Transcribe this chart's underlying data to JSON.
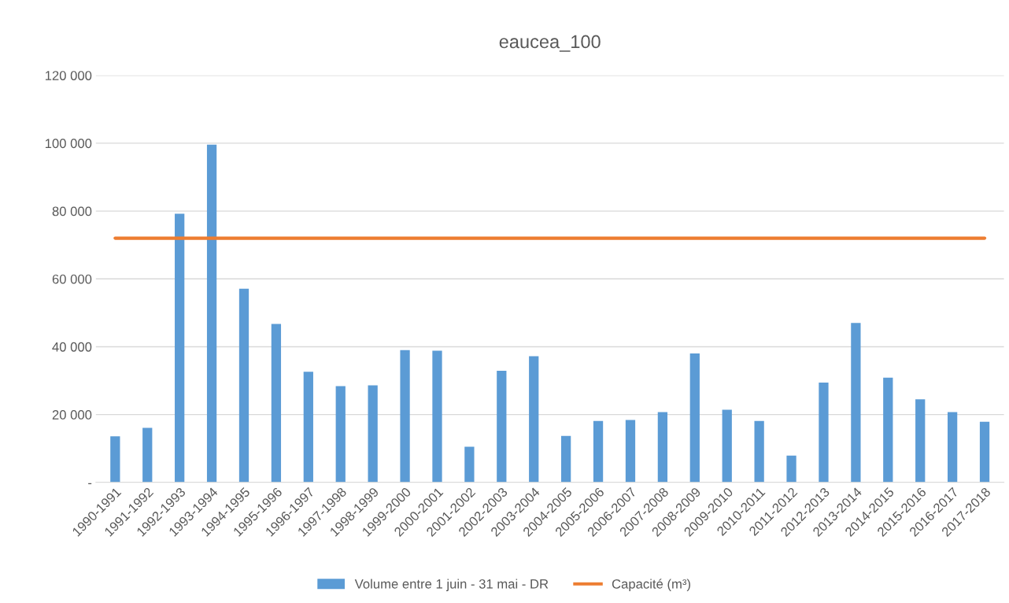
{
  "chart_data": {
    "type": "bar",
    "title": "eaucea_100",
    "categories": [
      "1990-1991",
      "1991-1992",
      "1992-1993",
      "1993-1994",
      "1994-1995",
      "1995-1996",
      "1996-1997",
      "1997-1998",
      "1998-1999",
      "1999-2000",
      "2000-2001",
      "2001-2002",
      "2002-2003",
      "2003-2004",
      "2004-2005",
      "2005-2006",
      "2006-2007",
      "2007-2008",
      "2008-2009",
      "2009-2010",
      "2010-2011",
      "2011-2012",
      "2012-2013",
      "2013-2014",
      "2014-2015",
      "2015-2016",
      "2016-2017",
      "2017-2018"
    ],
    "series": [
      {
        "name": "Volume entre 1 juin - 31 mai - DR",
        "color": "#5b9bd5",
        "values": [
          13600,
          16100,
          79200,
          99600,
          57100,
          46700,
          32600,
          28400,
          28600,
          39000,
          38800,
          10500,
          32900,
          37200,
          13700,
          18100,
          18400,
          20700,
          38000,
          21400,
          18100,
          7900,
          29400,
          47000,
          30900,
          24500,
          20700,
          17900
        ]
      },
      {
        "name": "Capacité (m³)",
        "type": "line",
        "color": "#ed7d31",
        "values": [
          72000,
          72000,
          72000,
          72000,
          72000,
          72000,
          72000,
          72000,
          72000,
          72000,
          72000,
          72000,
          72000,
          72000,
          72000,
          72000,
          72000,
          72000,
          72000,
          72000,
          72000,
          72000,
          72000,
          72000,
          72000,
          72000,
          72000,
          72000
        ]
      }
    ],
    "ylim": [
      0,
      120000
    ],
    "yticks": [
      {
        "value": 0,
        "label": "-"
      },
      {
        "value": 20000,
        "label": "20 000"
      },
      {
        "value": 40000,
        "label": "40 000"
      },
      {
        "value": 60000,
        "label": "60 000"
      },
      {
        "value": 80000,
        "label": "80 000"
      },
      {
        "value": 100000,
        "label": "100 000"
      },
      {
        "value": 120000,
        "label": "120 000"
      }
    ],
    "grid": "y",
    "legend": "bottom"
  }
}
